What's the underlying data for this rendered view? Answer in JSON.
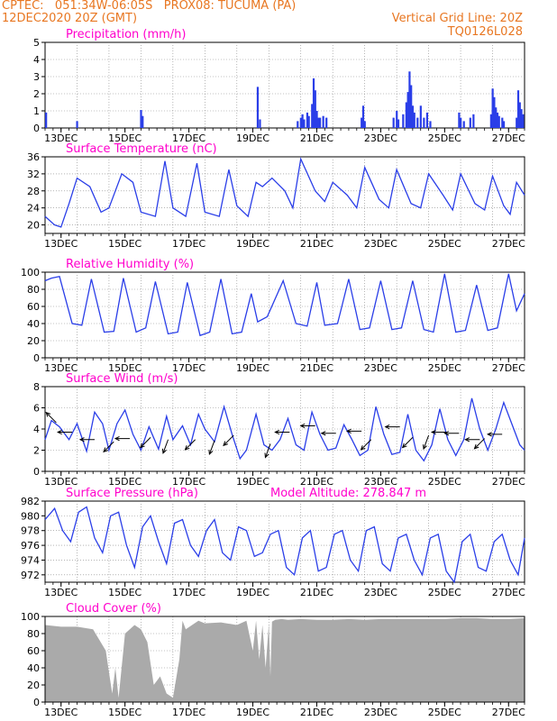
{
  "header": {
    "line1_left": "CPTEC:   051:34W-06:05S   PROX08: TUCUMA (PA)",
    "line2_left": "12DEC2020 20Z (GMT)",
    "line1_right": "Vertical Grid Line: 20Z",
    "line2_right": "TQ0126L028"
  },
  "colors": {
    "header": "#e87722",
    "title": "#ff00cc",
    "series": "#2a3ee8",
    "cloud": "#aaaaaa",
    "wind_arrow": "#000000",
    "grid": "#888888"
  },
  "x_axis": {
    "start_label": "12DEC2020 20Z",
    "range_days": [
      0,
      15
    ],
    "ticks": [
      {
        "day": 0.5,
        "label": "13DEC"
      },
      {
        "day": 2.5,
        "label": "15DEC"
      },
      {
        "day": 4.5,
        "label": "17DEC"
      },
      {
        "day": 6.5,
        "label": "19DEC"
      },
      {
        "day": 8.5,
        "label": "21DEC"
      },
      {
        "day": 10.5,
        "label": "23DEC"
      },
      {
        "day": 12.5,
        "label": "25DEC"
      },
      {
        "day": 14.5,
        "label": "27DEC"
      }
    ]
  },
  "chart_data": [
    {
      "id": "precip",
      "type": "bar",
      "title": "Precipitation (mm/h)",
      "ylim": [
        0,
        5
      ],
      "yticks": [
        0,
        1,
        2,
        3,
        4,
        5
      ],
      "grid": true,
      "bars": [
        [
          0.03,
          0.9
        ],
        [
          1.0,
          0.4
        ],
        [
          3.0,
          1.05
        ],
        [
          3.05,
          0.7
        ],
        [
          6.65,
          2.4
        ],
        [
          6.72,
          0.5
        ],
        [
          7.9,
          0.4
        ],
        [
          8.0,
          0.6
        ],
        [
          8.05,
          0.8
        ],
        [
          8.1,
          0.5
        ],
        [
          8.2,
          0.9
        ],
        [
          8.25,
          0.7
        ],
        [
          8.35,
          1.4
        ],
        [
          8.4,
          2.9
        ],
        [
          8.45,
          2.2
        ],
        [
          8.5,
          1.0
        ],
        [
          8.55,
          0.6
        ],
        [
          8.6,
          0.6
        ],
        [
          8.7,
          0.7
        ],
        [
          8.8,
          0.6
        ],
        [
          9.9,
          0.6
        ],
        [
          9.95,
          1.3
        ],
        [
          10.0,
          0.4
        ],
        [
          10.9,
          0.6
        ],
        [
          11.0,
          1.0
        ],
        [
          11.05,
          0.5
        ],
        [
          11.2,
          0.8
        ],
        [
          11.3,
          1.5
        ],
        [
          11.35,
          2.1
        ],
        [
          11.4,
          3.3
        ],
        [
          11.45,
          2.5
        ],
        [
          11.5,
          1.3
        ],
        [
          11.55,
          0.9
        ],
        [
          11.65,
          0.6
        ],
        [
          11.75,
          1.3
        ],
        [
          11.85,
          0.6
        ],
        [
          11.95,
          0.9
        ],
        [
          12.05,
          0.4
        ],
        [
          12.95,
          0.9
        ],
        [
          13.0,
          0.6
        ],
        [
          13.1,
          0.4
        ],
        [
          13.3,
          0.6
        ],
        [
          13.4,
          0.8
        ],
        [
          13.95,
          0.8
        ],
        [
          14.0,
          2.3
        ],
        [
          14.05,
          1.8
        ],
        [
          14.1,
          1.2
        ],
        [
          14.15,
          0.9
        ],
        [
          14.2,
          0.7
        ],
        [
          14.3,
          0.6
        ],
        [
          14.35,
          0.4
        ],
        [
          14.75,
          0.6
        ],
        [
          14.8,
          2.2
        ],
        [
          14.85,
          1.5
        ],
        [
          14.9,
          1.1
        ],
        [
          14.95,
          0.8
        ]
      ]
    },
    {
      "id": "temp",
      "type": "line",
      "title": "Surface Temperature (nC)",
      "ylim": [
        18,
        36
      ],
      "yticks": [
        20,
        24,
        28,
        32,
        36
      ],
      "grid": true,
      "x": [
        0,
        0.3,
        0.5,
        0.75,
        1.0,
        1.4,
        1.75,
        2.0,
        2.4,
        2.75,
        3.0,
        3.45,
        3.75,
        4.0,
        4.4,
        4.75,
        5.0,
        5.45,
        5.75,
        6.0,
        6.35,
        6.6,
        6.8,
        7.1,
        7.5,
        7.75,
        8.0,
        8.45,
        8.75,
        9.0,
        9.45,
        9.75,
        10.0,
        10.45,
        10.75,
        11.0,
        11.45,
        11.75,
        12.0,
        12.45,
        12.75,
        13.0,
        13.45,
        13.75,
        14.0,
        14.35,
        14.55,
        14.75,
        15.0
      ],
      "y": [
        22,
        20,
        19.5,
        25,
        31,
        29,
        23,
        24,
        32,
        30,
        23,
        22,
        35,
        24,
        22,
        34.5,
        23,
        22,
        33,
        24.5,
        22,
        30,
        29,
        31,
        28,
        24,
        35.5,
        28,
        25.5,
        30,
        27,
        24,
        33.5,
        26,
        24,
        33,
        25,
        24,
        32,
        27,
        23.5,
        32,
        25,
        23.5,
        31.5,
        24.5,
        22.5,
        30,
        27
      ]
    },
    {
      "id": "rh",
      "type": "line",
      "title": "Relative Humidity (%)",
      "ylim": [
        0,
        100
      ],
      "yticks": [
        0,
        20,
        40,
        60,
        80,
        100
      ],
      "grid": true,
      "x": [
        0,
        0.2,
        0.45,
        0.85,
        1.15,
        1.45,
        1.85,
        2.15,
        2.45,
        2.85,
        3.15,
        3.45,
        3.85,
        4.15,
        4.45,
        4.85,
        5.15,
        5.5,
        5.85,
        6.15,
        6.45,
        6.65,
        6.95,
        7.45,
        7.85,
        8.2,
        8.5,
        8.75,
        9.15,
        9.5,
        9.85,
        10.15,
        10.5,
        10.85,
        11.15,
        11.5,
        11.85,
        12.15,
        12.5,
        12.85,
        13.15,
        13.5,
        13.85,
        14.15,
        14.5,
        14.75,
        15.0
      ],
      "y": [
        90,
        93,
        95,
        40,
        38,
        92,
        30,
        31,
        93,
        30,
        35,
        89,
        28,
        30,
        88,
        26,
        30,
        92,
        28,
        30,
        75,
        42,
        48,
        90,
        40,
        37,
        88,
        38,
        40,
        92,
        33,
        35,
        90,
        33,
        35,
        90,
        33,
        30,
        98,
        30,
        32,
        85,
        32,
        35,
        98,
        55,
        75
      ]
    },
    {
      "id": "wind",
      "type": "line",
      "title": "Surface Wind (m/s)",
      "ylim": [
        0,
        8
      ],
      "yticks": [
        0,
        2,
        4,
        6,
        8
      ],
      "grid": true,
      "x": [
        0,
        0.2,
        0.45,
        0.75,
        1.0,
        1.3,
        1.55,
        1.8,
        2.0,
        2.25,
        2.5,
        2.75,
        3.0,
        3.25,
        3.55,
        3.8,
        4.0,
        4.3,
        4.55,
        4.8,
        5.0,
        5.3,
        5.6,
        5.85,
        6.1,
        6.3,
        6.6,
        6.85,
        7.1,
        7.35,
        7.6,
        7.85,
        8.1,
        8.35,
        8.6,
        8.85,
        9.1,
        9.35,
        9.6,
        9.85,
        10.1,
        10.35,
        10.6,
        10.85,
        11.1,
        11.35,
        11.6,
        11.85,
        12.1,
        12.35,
        12.6,
        12.85,
        13.1,
        13.35,
        13.6,
        13.85,
        14.1,
        14.35,
        14.6,
        14.85,
        15.0
      ],
      "y": [
        3.0,
        4.8,
        4.2,
        3.0,
        4.5,
        1.9,
        5.6,
        4.5,
        2.0,
        4.5,
        5.8,
        3.5,
        2.0,
        4.2,
        2.1,
        5.2,
        3.0,
        4.3,
        2.5,
        5.4,
        4.0,
        2.8,
        6.1,
        3.5,
        1.2,
        2.0,
        5.4,
        2.5,
        2.0,
        3.0,
        5.0,
        2.5,
        2.0,
        5.6,
        3.5,
        2.0,
        2.2,
        4.4,
        3.0,
        1.5,
        2.0,
        6.1,
        3.5,
        1.6,
        1.8,
        5.4,
        2.0,
        1.0,
        2.5,
        5.9,
        3.0,
        1.5,
        3.0,
        6.9,
        4.0,
        2.0,
        4.0,
        6.5,
        4.5,
        2.5,
        2.0
      ],
      "arrows": [
        {
          "day": 0.35,
          "value": 4.6,
          "dir": "nw"
        },
        {
          "day": 0.85,
          "value": 3.7,
          "dir": "w"
        },
        {
          "day": 1.55,
          "value": 3.0,
          "dir": "w"
        },
        {
          "day": 2.15,
          "value": 2.8,
          "dir": "sw"
        },
        {
          "day": 2.65,
          "value": 3.1,
          "dir": "w"
        },
        {
          "day": 3.3,
          "value": 3.2,
          "dir": "sw"
        },
        {
          "day": 3.85,
          "value": 3.0,
          "dir": "ssw"
        },
        {
          "day": 4.7,
          "value": 3.0,
          "dir": "sw"
        },
        {
          "day": 5.3,
          "value": 2.9,
          "dir": "ssw"
        },
        {
          "day": 5.9,
          "value": 3.4,
          "dir": "sw"
        },
        {
          "day": 7.05,
          "value": 2.6,
          "dir": "ssw"
        },
        {
          "day": 7.65,
          "value": 3.7,
          "dir": "w"
        },
        {
          "day": 8.45,
          "value": 4.3,
          "dir": "w"
        },
        {
          "day": 9.1,
          "value": 3.6,
          "dir": "w"
        },
        {
          "day": 9.9,
          "value": 3.8,
          "dir": "w"
        },
        {
          "day": 10.2,
          "value": 3.0,
          "dir": "sw"
        },
        {
          "day": 11.1,
          "value": 4.2,
          "dir": "w"
        },
        {
          "day": 11.5,
          "value": 3.2,
          "dir": "sw"
        },
        {
          "day": 12.0,
          "value": 3.4,
          "dir": "ssw"
        },
        {
          "day": 12.55,
          "value": 3.7,
          "dir": "w"
        },
        {
          "day": 12.95,
          "value": 3.6,
          "dir": "w"
        },
        {
          "day": 13.6,
          "value": 3.0,
          "dir": "w"
        },
        {
          "day": 13.75,
          "value": 3.1,
          "dir": "sw"
        },
        {
          "day": 14.3,
          "value": 3.5,
          "dir": "w"
        }
      ]
    },
    {
      "id": "press",
      "type": "line",
      "title": "Surface Pressure (hPa)",
      "annotation": "Model Altitude: 278.847  m",
      "ylim": [
        971,
        982
      ],
      "yticks": [
        972,
        974,
        976,
        978,
        980,
        982
      ],
      "grid": true,
      "x": [
        0,
        0.3,
        0.55,
        0.8,
        1.05,
        1.3,
        1.55,
        1.8,
        2.05,
        2.3,
        2.55,
        2.8,
        3.05,
        3.3,
        3.55,
        3.8,
        4.05,
        4.3,
        4.55,
        4.8,
        5.05,
        5.3,
        5.55,
        5.8,
        6.05,
        6.3,
        6.55,
        6.8,
        7.05,
        7.3,
        7.55,
        7.8,
        8.05,
        8.3,
        8.55,
        8.8,
        9.05,
        9.3,
        9.55,
        9.8,
        10.05,
        10.3,
        10.55,
        10.8,
        11.05,
        11.3,
        11.55,
        11.8,
        12.05,
        12.3,
        12.55,
        12.8,
        13.05,
        13.3,
        13.55,
        13.8,
        14.05,
        14.3,
        14.55,
        14.8,
        15.0
      ],
      "y": [
        979.5,
        981.0,
        978.0,
        976.5,
        980.5,
        981.2,
        977.0,
        975.0,
        980.0,
        980.5,
        976.0,
        973.0,
        978.5,
        980.0,
        976.5,
        973.5,
        979.0,
        979.5,
        976.0,
        974.5,
        978.0,
        979.5,
        975.0,
        974.0,
        978.5,
        978.0,
        974.5,
        975.0,
        977.5,
        978.0,
        973.0,
        972.0,
        977.0,
        978.0,
        972.5,
        973.0,
        977.5,
        978.0,
        974.0,
        972.5,
        978.0,
        978.5,
        973.5,
        972.5,
        977.0,
        977.5,
        974.0,
        972.0,
        977.0,
        977.5,
        972.5,
        971.0,
        976.5,
        977.5,
        973.0,
        972.5,
        976.5,
        977.5,
        974.0,
        972.0,
        977.0
      ]
    },
    {
      "id": "cloud",
      "type": "area",
      "title": "Cloud Cover (%)",
      "ylim": [
        0,
        100
      ],
      "yticks": [
        0,
        20,
        40,
        60,
        80,
        100
      ],
      "grid": true,
      "x": [
        0,
        0.5,
        1.0,
        1.5,
        1.9,
        2.0,
        2.1,
        2.2,
        2.3,
        2.5,
        2.8,
        3.0,
        3.2,
        3.4,
        3.6,
        3.8,
        4.0,
        4.2,
        4.3,
        4.4,
        4.6,
        4.8,
        5.0,
        5.5,
        6.0,
        6.3,
        6.5,
        6.6,
        6.7,
        6.8,
        6.9,
        7.0,
        7.05,
        7.1,
        7.2,
        7.4,
        7.6,
        8.0,
        8.5,
        9.0,
        9.5,
        10.0,
        10.5,
        11.0,
        11.5,
        12.0,
        12.5,
        13.0,
        13.5,
        14.0,
        14.5,
        15.0
      ],
      "y": [
        90,
        88,
        88,
        85,
        60,
        35,
        10,
        40,
        5,
        80,
        90,
        85,
        70,
        20,
        30,
        10,
        5,
        50,
        95,
        85,
        90,
        95,
        92,
        93,
        90,
        95,
        60,
        95,
        50,
        90,
        40,
        92,
        30,
        94,
        96,
        97,
        96,
        97,
        96,
        96,
        97,
        96,
        97,
        97,
        97,
        97,
        97,
        98,
        98,
        97,
        97,
        98
      ]
    }
  ]
}
